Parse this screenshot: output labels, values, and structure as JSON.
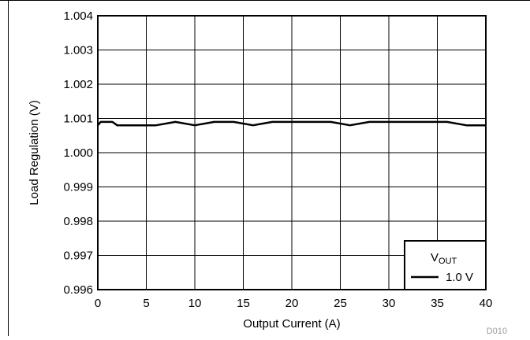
{
  "chart_data": {
    "type": "line",
    "xlabel": "Output Current (A)",
    "ylabel": "Load Regulation (V)",
    "xlim": [
      0,
      40
    ],
    "ylim": [
      0.996,
      1.004
    ],
    "x_ticks": [
      "0",
      "5",
      "10",
      "15",
      "20",
      "25",
      "30",
      "35",
      "40"
    ],
    "y_ticks": [
      "0.996",
      "0.997",
      "0.998",
      "0.999",
      "1.000",
      "1.001",
      "1.002",
      "1.003",
      "1.004"
    ],
    "grid": true,
    "legend": {
      "position": "bottom-right",
      "title_main": "V",
      "title_sub": "OUT"
    },
    "series": [
      {
        "name": "1.0 V",
        "color": "#000000",
        "x": [
          0,
          0.3,
          0.5,
          1,
          1.5,
          2,
          4,
          6,
          8,
          10,
          12,
          14,
          16,
          18,
          20,
          22,
          24,
          26,
          28,
          30,
          32,
          34,
          36,
          38,
          40
        ],
        "y": [
          1.0008,
          1.0009,
          1.0009,
          1.0009,
          1.0009,
          1.0008,
          1.0008,
          1.0008,
          1.0009,
          1.0008,
          1.0009,
          1.0009,
          1.0008,
          1.0009,
          1.0009,
          1.0009,
          1.0009,
          1.0008,
          1.0009,
          1.0009,
          1.0009,
          1.0009,
          1.0009,
          1.0008,
          1.0008
        ]
      }
    ],
    "figure_id": "D010"
  }
}
